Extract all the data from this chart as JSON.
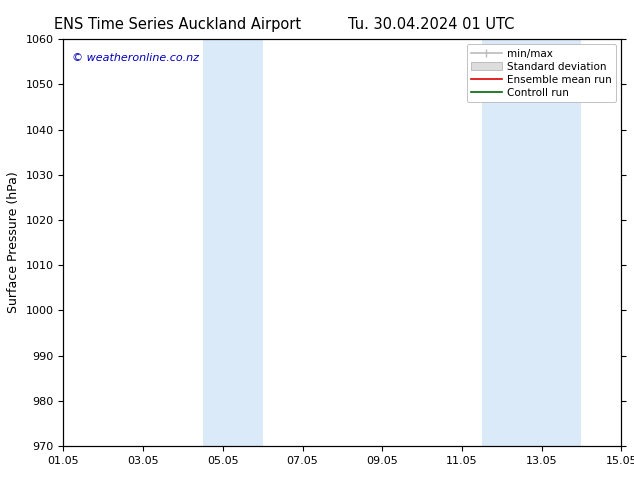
{
  "title_left": "ENS Time Series Auckland Airport",
  "title_right": "Tu. 30.04.2024 01 UTC",
  "ylabel": "Surface Pressure (hPa)",
  "ylim": [
    970,
    1060
  ],
  "yticks": [
    970,
    980,
    990,
    1000,
    1010,
    1020,
    1030,
    1040,
    1050,
    1060
  ],
  "xlim": [
    0,
    14
  ],
  "xtick_labels": [
    "01.05",
    "03.05",
    "05.05",
    "07.05",
    "09.05",
    "11.05",
    "13.05",
    "15.05"
  ],
  "xtick_positions": [
    0,
    2,
    4,
    6,
    8,
    10,
    12,
    14
  ],
  "shaded_bands": [
    {
      "x_start": 3.5,
      "x_end": 5.0,
      "color": "#daeaf8"
    },
    {
      "x_start": 10.5,
      "x_end": 13.0,
      "color": "#daeaf8"
    }
  ],
  "watermark": "© weatheronline.co.nz",
  "watermark_color": "#0000bb",
  "legend_entries": [
    {
      "label": "min/max",
      "type": "line",
      "color": "#bbbbbb",
      "lw": 1.2
    },
    {
      "label": "Standard deviation",
      "type": "patch",
      "color": "#dddddd"
    },
    {
      "label": "Ensemble mean run",
      "type": "line",
      "color": "#dd0000",
      "lw": 1.2
    },
    {
      "label": "Controll run",
      "type": "line",
      "color": "#006600",
      "lw": 1.2
    }
  ],
  "bg_color": "#ffffff",
  "title_fontsize": 10.5,
  "ylabel_fontsize": 9,
  "tick_fontsize": 8,
  "legend_fontsize": 7.5,
  "watermark_fontsize": 8
}
